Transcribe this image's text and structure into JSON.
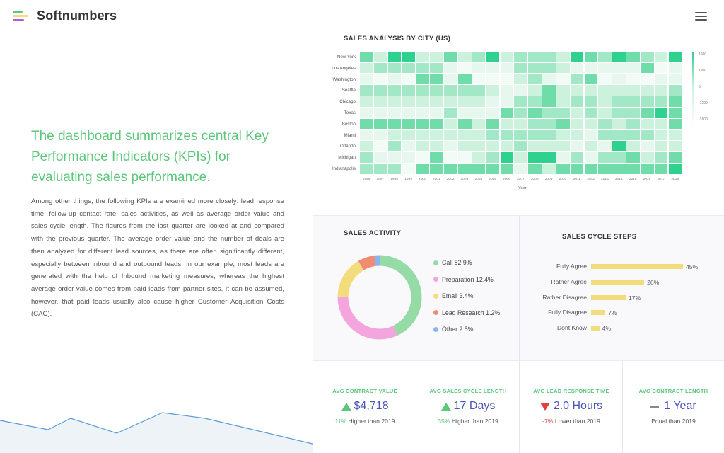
{
  "brand": {
    "name": "Softnumbers",
    "logo_colors": [
      "#5cc77a",
      "#f2dc7c",
      "#b65cd8"
    ]
  },
  "intro": {
    "headline": "The dashboard summarizes central Key Performance Indicators (KPIs) for evaluating sales performance.",
    "paragraph": "Among other things, the following KPIs are examined more closely: lead response time, follow-up contact rate, sales activities, as well as average order value and sales cycle length. The figures from the last quarter are looked at and compared with the previous quarter. The average order value and the number of deals are then analyzed for different lead sources, as there are often significantly different, especially between inbound and outbound leads. In our example, most leads are generated with the help of Inbound marketing measures, whereas the highest average order value comes from paid leads from partner sites. It can be assumed, however, that paid leads usually also cause higher Customer Acquisition Costs (CAC)."
  },
  "menu": {
    "icon": "hamburger-icon"
  },
  "colors": {
    "accent": "#5cc77a",
    "value": "#4a55b8",
    "negative": "#e04040",
    "bar": "#f2dc7c"
  },
  "chart_data": [
    {
      "type": "heatmap",
      "title": "SALES ANALYSIS BY CITY (US)",
      "xlabel": "Year",
      "ylabel": "",
      "x": [
        "1996",
        "1997",
        "1998",
        "1999",
        "2000",
        "2001",
        "2002",
        "2003",
        "2004",
        "2005",
        "2006",
        "2007",
        "2008",
        "2009",
        "2010",
        "2011",
        "2012",
        "2013",
        "2014",
        "2015",
        "2016",
        "2017",
        "2018"
      ],
      "y": [
        "New York",
        "Los Angeles",
        "Washington",
        "Seattle",
        "Chicago",
        "Texas",
        "Boston",
        "Miami",
        "Orlando",
        "Michigan",
        "Indianapolis"
      ],
      "scale_ticks": [
        "1600",
        "1200",
        "0",
        "-1200",
        "-1600"
      ],
      "values": [
        [
          1200,
          200,
          1600,
          1600,
          200,
          200,
          1200,
          200,
          800,
          1600,
          200,
          800,
          800,
          800,
          200,
          1600,
          1200,
          800,
          1600,
          1200,
          800,
          200,
          1600
        ],
        [
          200,
          800,
          800,
          800,
          800,
          800,
          -1200,
          -1600,
          -1200,
          -1200,
          -1200,
          800,
          800,
          800,
          200,
          -1200,
          -1200,
          -1200,
          -1200,
          -1200,
          1200,
          -1600,
          -1200
        ],
        [
          -1200,
          -1600,
          -1200,
          -1600,
          1200,
          1200,
          -1200,
          1200,
          -1600,
          -1600,
          -1600,
          200,
          800,
          -1200,
          -1600,
          800,
          1200,
          -1600,
          -1200,
          -1600,
          -1600,
          -1200,
          -1200
        ],
        [
          800,
          800,
          800,
          800,
          800,
          800,
          800,
          800,
          800,
          200,
          -1200,
          -1200,
          200,
          1200,
          200,
          200,
          200,
          200,
          200,
          200,
          200,
          200,
          800
        ],
        [
          200,
          200,
          200,
          200,
          200,
          200,
          200,
          200,
          200,
          -1200,
          -1200,
          800,
          800,
          1200,
          200,
          800,
          800,
          200,
          800,
          800,
          800,
          800,
          1200
        ],
        [
          -1200,
          -1200,
          -1200,
          -1200,
          -1200,
          -1200,
          800,
          -1200,
          -1200,
          -1200,
          1200,
          800,
          1200,
          800,
          800,
          200,
          800,
          200,
          800,
          800,
          1200,
          1600,
          1200
        ],
        [
          1200,
          1200,
          1200,
          1200,
          1200,
          1200,
          200,
          1200,
          200,
          1200,
          200,
          200,
          800,
          800,
          1200,
          200,
          200,
          800,
          200,
          800,
          200,
          200,
          1200
        ],
        [
          -1200,
          -1200,
          200,
          200,
          200,
          200,
          200,
          200,
          200,
          800,
          800,
          800,
          800,
          800,
          200,
          200,
          -1200,
          800,
          800,
          800,
          800,
          200,
          200
        ],
        [
          200,
          -1600,
          800,
          -1200,
          200,
          200,
          -1200,
          200,
          200,
          200,
          200,
          800,
          200,
          200,
          200,
          -1200,
          200,
          -1200,
          1600,
          200,
          -1200,
          200,
          200
        ],
        [
          800,
          -1200,
          -1200,
          -1200,
          -1600,
          1200,
          -1600,
          -1600,
          200,
          800,
          1600,
          200,
          1600,
          1600,
          -1200,
          800,
          -1200,
          800,
          800,
          1200,
          200,
          800,
          1200
        ],
        [
          800,
          800,
          800,
          -1600,
          1200,
          1200,
          1200,
          1200,
          1200,
          1200,
          1200,
          -1200,
          1200,
          200,
          1200,
          1200,
          1200,
          1200,
          1200,
          1200,
          1200,
          1200,
          1600
        ]
      ]
    },
    {
      "type": "pie",
      "title": "SALES ACTIVITY",
      "legend_position": "right",
      "slices": [
        {
          "label": "Call 82.9%",
          "value": 82.9,
          "color": "#94dba6"
        },
        {
          "label": "Preparation 12.4%",
          "value": 12.4,
          "color": "#f4a5de"
        },
        {
          "label": "Email 3.4%",
          "value": 3.4,
          "color": "#f2dc7c"
        },
        {
          "label": "Lead Research 1.2%",
          "value": 1.2,
          "color": "#f08c70"
        },
        {
          "label": "Other 2.5%",
          "value": 2.5,
          "color": "#8ab4f0"
        }
      ],
      "ring_shares": [
        0.4,
        0.3,
        0.15,
        0.06,
        0.02
      ]
    },
    {
      "type": "bar",
      "title": "SALES CYCLE STEPS",
      "orientation": "horizontal",
      "categories": [
        "Fully Agree",
        "Rather Agree",
        "Rather Disagree",
        "Fully Disagree",
        "Dont Know"
      ],
      "values": [
        45,
        26,
        17,
        7,
        4
      ],
      "value_labels": [
        "45%",
        "26%",
        "17%",
        "7%",
        "4%"
      ],
      "xlim": [
        0,
        45
      ]
    }
  ],
  "kpis": [
    {
      "label": "AVG CONTRACT VALUE",
      "trend": "up",
      "value": "$4,718",
      "pct": "11%",
      "note": " Higher than 2019"
    },
    {
      "label": "AVG SALES CYCLE LENGTH",
      "trend": "up",
      "value": "17 Days",
      "pct": "35%",
      "note": " Higher than 2019"
    },
    {
      "label": "AVG LEAD RESPONSE TIME",
      "trend": "down",
      "value": "2.0 Hours",
      "pct": "-7%",
      "note": " Lower than 2019"
    },
    {
      "label": "AVG CONTRACT LENGTH",
      "trend": "flat",
      "value": "1 Year",
      "pct": "",
      "note": "Equal than 2019"
    }
  ]
}
